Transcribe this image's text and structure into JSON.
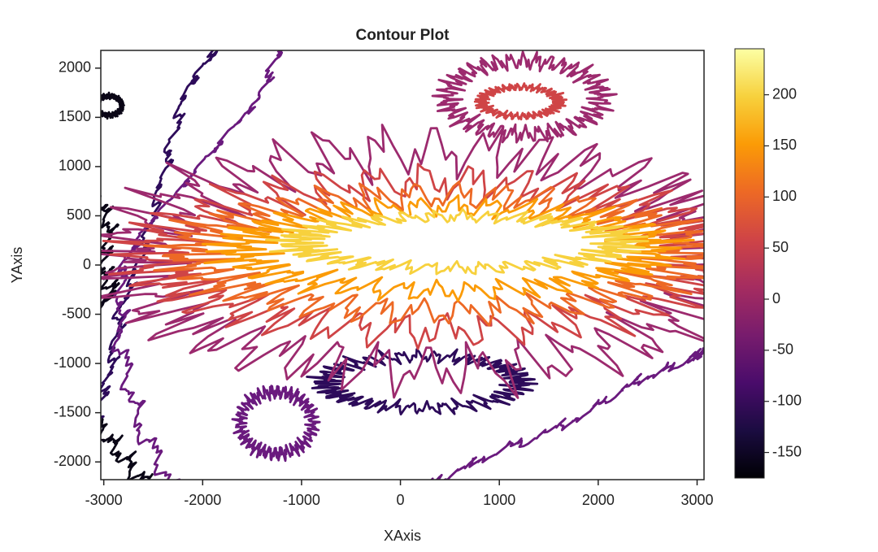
{
  "chart_data": {
    "type": "contour",
    "title": "Contour Plot",
    "x_label": "XAxis",
    "y_label": "YAxis",
    "xlim": [
      -3030,
      3070
    ],
    "xticks": [
      -3000,
      -2000,
      -1000,
      0,
      1000,
      2000,
      3000
    ],
    "ylim": [
      -2180,
      2180
    ],
    "yticks": [
      -2000,
      -1500,
      -1000,
      -500,
      0,
      500,
      1000,
      1500,
      2000
    ],
    "levels": [
      -150,
      -100,
      -50,
      0,
      50,
      100,
      150,
      200
    ],
    "level_colors": [
      "#0a0616",
      "#2d0b5a",
      "#6a1a7e",
      "#9c2a6e",
      "#cf4446",
      "#ed6925",
      "#fb9b06",
      "#f7d13d"
    ],
    "colormap": "inferno",
    "clim": [
      -175,
      245
    ],
    "cticks": [
      -150,
      -100,
      -50,
      0,
      50,
      100,
      150,
      200
    ]
  }
}
